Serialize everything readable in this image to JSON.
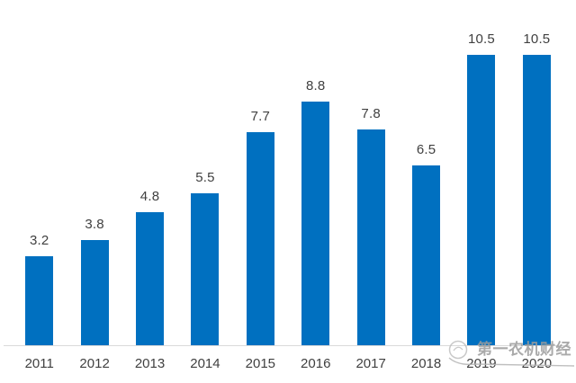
{
  "chart_data": {
    "type": "bar",
    "title": "",
    "xlabel": "",
    "ylabel": "",
    "categories": [
      "2011",
      "2012",
      "2013",
      "2014",
      "2015",
      "2016",
      "2017",
      "2018",
      "2019",
      "2020"
    ],
    "values": [
      3.2,
      3.8,
      4.8,
      5.5,
      7.7,
      8.8,
      7.8,
      6.5,
      10.5,
      10.5
    ],
    "value_labels_shown": true,
    "ylim": [
      0,
      12.5
    ],
    "grid": false,
    "legend": false,
    "bar_color": "#0070C0",
    "label_color": "#404040",
    "tick_label_color": "#404040",
    "axis_line_color": "#D9D9D9"
  },
  "watermark": {
    "text": "第一农机财经",
    "color": "#9C9C9C",
    "logo_color": "#C0C0C0"
  }
}
